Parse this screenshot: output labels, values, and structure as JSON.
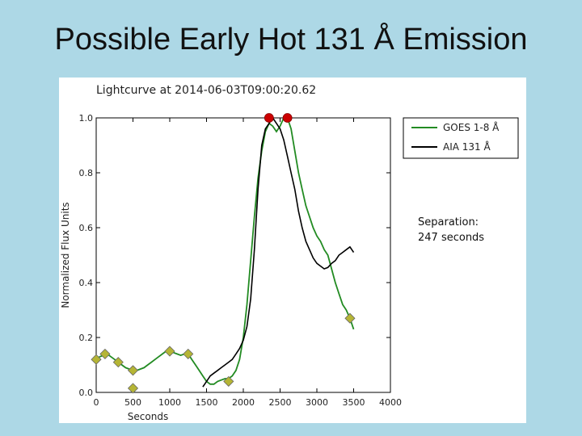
{
  "slide": {
    "title": "Possible Early Hot 131 Å Emission"
  },
  "annotation": {
    "line1": "Separation:",
    "line2": "247 seconds"
  },
  "colors": {
    "background": "#add8e6",
    "goes": "#228b22",
    "aia": "#000000",
    "peak_marker": "#cc0000",
    "minmax_marker": "#b5b535"
  },
  "chart_data": {
    "type": "line",
    "title": "Lightcurve at 2014-06-03T09:00:20.62",
    "xlabel": "Seconds",
    "ylabel": "Normalized Flux Units",
    "xlim": [
      0,
      4000
    ],
    "ylim": [
      0,
      1.0
    ],
    "xticks": [
      "0",
      "500",
      "1000",
      "1500",
      "2000",
      "2500",
      "3000",
      "3500",
      "4000"
    ],
    "yticks": [
      "0.0",
      "0.2",
      "0.4",
      "0.6",
      "0.8",
      "1.0"
    ],
    "grid": false,
    "legend": "top-right",
    "series": [
      {
        "name": "GOES 1-8 Å",
        "color": "#228b22",
        "x": [
          0,
          50,
          100,
          150,
          200,
          250,
          300,
          350,
          400,
          450,
          500,
          550,
          600,
          650,
          700,
          750,
          800,
          850,
          900,
          950,
          1000,
          1050,
          1100,
          1150,
          1200,
          1250,
          1300,
          1350,
          1400,
          1450,
          1500,
          1550,
          1600,
          1650,
          1700,
          1750,
          1800,
          1850,
          1900,
          1950,
          2000,
          2050,
          2100,
          2150,
          2200,
          2250,
          2300,
          2350,
          2400,
          2450,
          2500,
          2550,
          2600,
          2650,
          2700,
          2750,
          2800,
          2850,
          2900,
          2950,
          3000,
          3050,
          3100,
          3150,
          3200,
          3250,
          3300,
          3350,
          3400,
          3450,
          3500
        ],
        "values": [
          0.12,
          0.13,
          0.135,
          0.14,
          0.13,
          0.12,
          0.11,
          0.1,
          0.09,
          0.085,
          0.08,
          0.08,
          0.085,
          0.09,
          0.1,
          0.11,
          0.12,
          0.13,
          0.14,
          0.15,
          0.15,
          0.145,
          0.14,
          0.135,
          0.14,
          0.14,
          0.12,
          0.1,
          0.08,
          0.06,
          0.04,
          0.03,
          0.03,
          0.04,
          0.045,
          0.05,
          0.05,
          0.06,
          0.08,
          0.12,
          0.2,
          0.32,
          0.48,
          0.64,
          0.78,
          0.88,
          0.95,
          0.98,
          0.97,
          0.95,
          0.97,
          1.0,
          1.0,
          0.96,
          0.88,
          0.8,
          0.74,
          0.68,
          0.64,
          0.6,
          0.57,
          0.55,
          0.52,
          0.5,
          0.45,
          0.4,
          0.36,
          0.32,
          0.3,
          0.27,
          0.23
        ]
      },
      {
        "name": "AIA 131 Å",
        "color": "#000000",
        "x": [
          1450,
          1500,
          1550,
          1600,
          1650,
          1700,
          1750,
          1800,
          1850,
          1900,
          1950,
          2000,
          2050,
          2100,
          2150,
          2200,
          2250,
          2300,
          2350,
          2400,
          2450,
          2500,
          2550,
          2600,
          2650,
          2700,
          2750,
          2800,
          2850,
          2900,
          2950,
          3000,
          3050,
          3100,
          3150,
          3200,
          3250,
          3300,
          3350,
          3400,
          3450,
          3500
        ],
        "values": [
          0.02,
          0.04,
          0.06,
          0.07,
          0.08,
          0.09,
          0.1,
          0.11,
          0.12,
          0.14,
          0.16,
          0.19,
          0.24,
          0.34,
          0.52,
          0.74,
          0.9,
          0.96,
          0.98,
          1.0,
          0.98,
          0.96,
          0.92,
          0.86,
          0.8,
          0.74,
          0.66,
          0.6,
          0.55,
          0.52,
          0.49,
          0.47,
          0.46,
          0.45,
          0.455,
          0.47,
          0.48,
          0.5,
          0.51,
          0.52,
          0.53,
          0.51
        ]
      }
    ],
    "markers": {
      "peaks": [
        {
          "x": 2350,
          "y": 1.0
        },
        {
          "x": 2600,
          "y": 1.0
        }
      ],
      "minmax": [
        {
          "x": 0,
          "y": 0.12
        },
        {
          "x": 120,
          "y": 0.14
        },
        {
          "x": 300,
          "y": 0.11
        },
        {
          "x": 500,
          "y": 0.08
        },
        {
          "x": 500,
          "y": 0.015
        },
        {
          "x": 1000,
          "y": 0.15
        },
        {
          "x": 1250,
          "y": 0.14
        },
        {
          "x": 1800,
          "y": 0.04
        },
        {
          "x": 3450,
          "y": 0.27
        }
      ]
    }
  }
}
